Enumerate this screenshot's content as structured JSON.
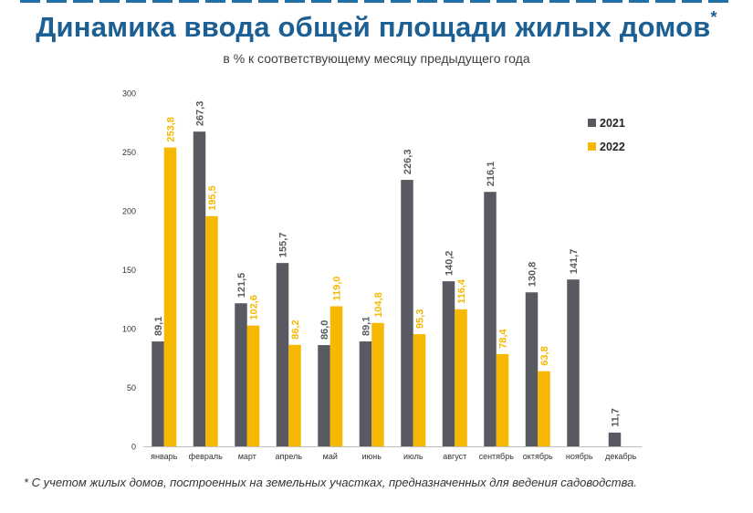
{
  "header": {
    "title": "Динамика ввода общей площади жилых домов",
    "title_mark": "*",
    "subtitle": "в % к соответствующему месяцу предыдущего года"
  },
  "footnote": "* С учетом жилых домов, построенных на земельных участках, предназначенных для ведения садоводства.",
  "colors": {
    "title": "#1c5f93",
    "s2021": "#595a61",
    "s2022": "#f6b800"
  },
  "chart_data": {
    "type": "bar",
    "categories": [
      "январь",
      "февраль",
      "март",
      "апрель",
      "май",
      "июнь",
      "июль",
      "август",
      "сентябрь",
      "октябрь",
      "ноябрь",
      "декабрь"
    ],
    "series": [
      {
        "name": "2021",
        "values": [
          89.1,
          267.3,
          121.5,
          155.7,
          86.0,
          89.1,
          226.3,
          140.2,
          216.1,
          130.8,
          141.7,
          11.7
        ],
        "labels": [
          "89,1",
          "267,3",
          "121,5",
          "155,7",
          "86,0",
          "89,1",
          "226,3",
          "140,2",
          "216,1",
          "130,8",
          "141,7",
          "11,7"
        ]
      },
      {
        "name": "2022",
        "values": [
          253.8,
          195.5,
          102.6,
          86.2,
          119.0,
          104.8,
          95.3,
          116.4,
          78.4,
          63.8,
          null,
          null
        ],
        "labels": [
          "253,8",
          "195,5",
          "102,6",
          "86,2",
          "119,0",
          "104,8",
          "95,3",
          "116,4",
          "78,4",
          "63,8",
          "",
          ""
        ]
      }
    ],
    "yticks": [
      "0",
      "50",
      "100",
      "150",
      "200",
      "250",
      "300"
    ],
    "ylim": [
      0,
      300
    ],
    "legend_position": "right",
    "grid": false
  }
}
